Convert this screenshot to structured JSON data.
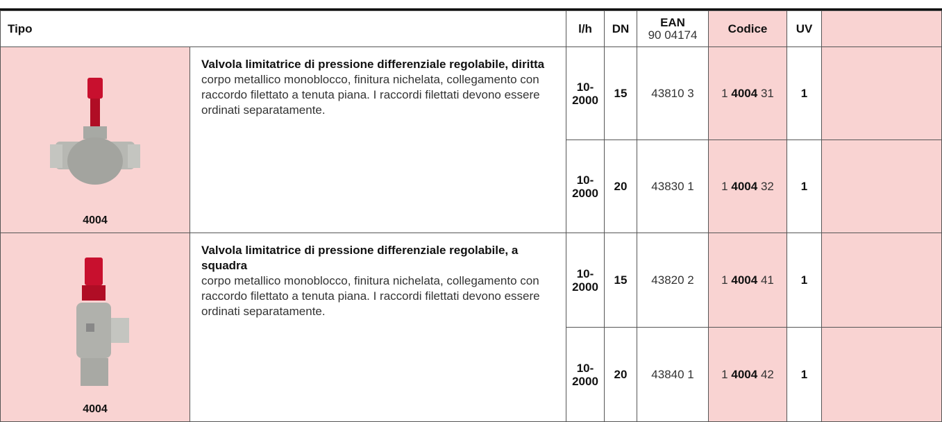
{
  "header": {
    "tipo": "Tipo",
    "flow": "l/h",
    "dn": "DN",
    "ean": {
      "title": "EAN",
      "sub": "90 04174"
    },
    "code": "Codice",
    "uv": "UV"
  },
  "products": [
    {
      "model": "4004",
      "title": "Valvola limitatrice di pressione differenziale regolabile, diritta",
      "description": "corpo metallico monoblocco, finitura nichelata, collegamento con raccordo filettato a tenuta piana. I raccordi filettati devono essere ordinati separatamente.",
      "variants": [
        {
          "flow": "10-2000",
          "dn": "15",
          "ean": "43810 3",
          "code": {
            "prefix": "1",
            "bold": "4004",
            "suffix": "31"
          },
          "uv": "1"
        },
        {
          "flow": "10-2000",
          "dn": "20",
          "ean": "43830 1",
          "code": {
            "prefix": "1",
            "bold": "4004",
            "suffix": "32"
          },
          "uv": "1"
        }
      ]
    },
    {
      "model": "4004",
      "title": "Valvola limitatrice di pressione differenziale regolabile, a squadra",
      "description": "corpo metallico monoblocco, finitura nichelata, collegamento con raccordo filettato a tenuta piana. I raccordi filettati devono essere ordinati separatamente.",
      "variants": [
        {
          "flow": "10-2000",
          "dn": "15",
          "ean": "43820 2",
          "code": {
            "prefix": "1",
            "bold": "4004",
            "suffix": "41"
          },
          "uv": "1"
        },
        {
          "flow": "10-2000",
          "dn": "20",
          "ean": "43840 1",
          "code": {
            "prefix": "1",
            "bold": "4004",
            "suffix": "42"
          },
          "uv": "1"
        }
      ]
    }
  ]
}
